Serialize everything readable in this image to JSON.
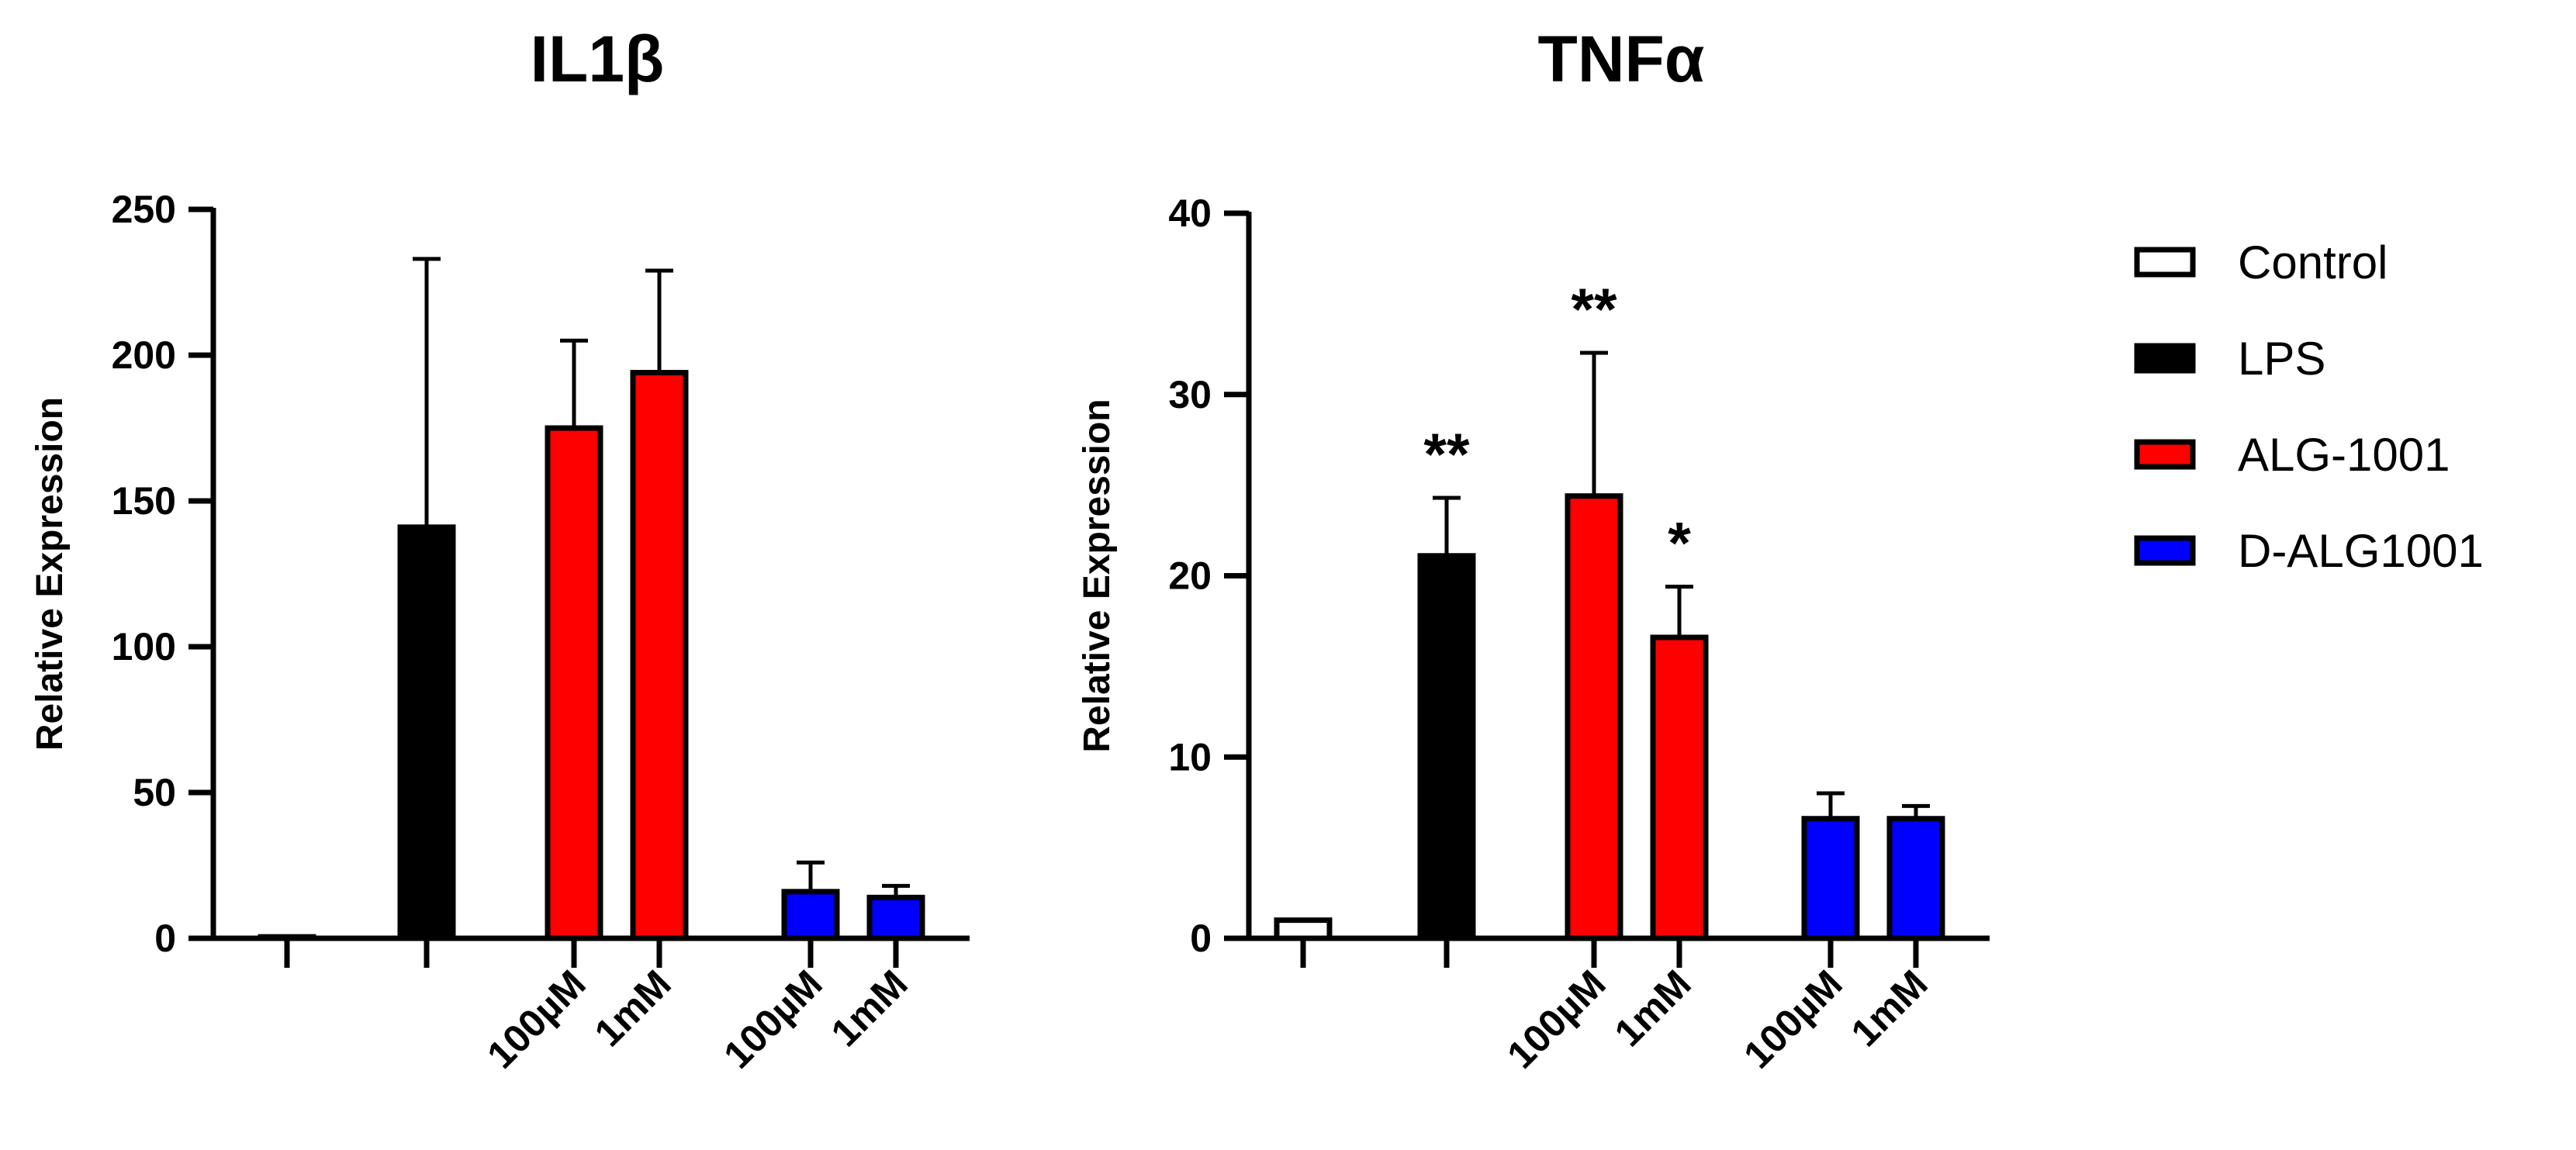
{
  "figure_title": "",
  "legend": [
    {
      "label": "Control",
      "fill": "#ffffff"
    },
    {
      "label": "LPS",
      "fill": "#000000"
    },
    {
      "label": "ALG-1001",
      "fill": "#ff0000"
    },
    {
      "label": "D-ALG1001",
      "fill": "#0000ff"
    }
  ],
  "chart_data": [
    {
      "type": "bar",
      "title": "IL1β",
      "ylabel": "Relative Expression",
      "xlabel": "",
      "ylim": [
        0,
        250
      ],
      "yticks": [
        0,
        50,
        100,
        150,
        200,
        250
      ],
      "categories": [
        "Control",
        "LPS",
        "ALG-1001 100µM",
        "ALG-1001 1mM",
        "D-ALG1001 100µM",
        "D-ALG1001 1mM"
      ],
      "tick_labels": [
        "",
        "",
        "100µM",
        "1mM",
        "100µM",
        "1mM"
      ],
      "groups": [
        "Control",
        "LPS",
        "ALG-1001",
        "ALG-1001",
        "D-ALG1001",
        "D-ALG1001"
      ],
      "values": [
        0.5,
        141,
        175,
        194,
        16,
        14
      ],
      "errors": [
        0,
        92,
        30,
        35,
        10,
        4
      ],
      "significance": [
        "",
        "",
        "",
        "",
        "",
        ""
      ]
    },
    {
      "type": "bar",
      "title": "TNFα",
      "ylabel": "Relative Expression",
      "xlabel": "",
      "ylim": [
        0,
        40
      ],
      "yticks": [
        0,
        10,
        20,
        30,
        40
      ],
      "categories": [
        "Control",
        "LPS",
        "ALG-1001 100µM",
        "ALG-1001 1mM",
        "D-ALG1001 100µM",
        "D-ALG1001 1mM"
      ],
      "tick_labels": [
        "",
        "",
        "100µM",
        "1mM",
        "100µM",
        "1mM"
      ],
      "groups": [
        "Control",
        "LPS",
        "ALG-1001",
        "ALG-1001",
        "D-ALG1001",
        "D-ALG1001"
      ],
      "values": [
        1.0,
        21.1,
        24.4,
        16.6,
        6.6,
        6.6
      ],
      "errors": [
        0,
        3.2,
        7.9,
        2.8,
        1.4,
        0.7
      ],
      "significance": [
        "",
        "**",
        "**",
        "*",
        "",
        ""
      ]
    }
  ]
}
